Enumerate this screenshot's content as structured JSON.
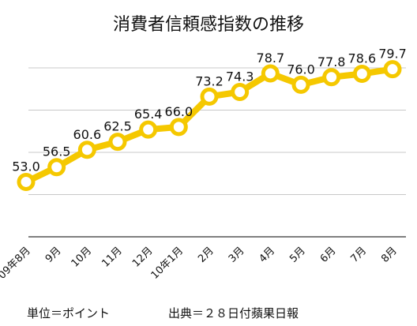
{
  "chart_data": {
    "type": "line",
    "title": "消費者信頼感指数の推移",
    "categories": [
      "09年8月",
      "9月",
      "10月",
      "11月",
      "12月",
      "10年1月",
      "2月",
      "3月",
      "4月",
      "5月",
      "6月",
      "7月",
      "8月"
    ],
    "values": [
      53.0,
      56.5,
      60.6,
      62.5,
      65.4,
      66.0,
      73.2,
      74.3,
      78.7,
      76.0,
      77.8,
      78.6,
      79.7
    ],
    "value_labels": [
      "53.0",
      "56.5",
      "60.6",
      "62.5",
      "65.4",
      "66.0",
      "73.2",
      "74.3",
      "78.7",
      "76.0",
      "77.8",
      "78.6",
      "79.7"
    ],
    "ylim": [
      40,
      80
    ],
    "grid": true,
    "colors": {
      "line": "#f5c800",
      "marker_fill": "#ffffff",
      "grid": "#c8c8c8"
    }
  },
  "notes": {
    "unit": "単位＝ポイント",
    "source": "出典＝２８日付蘋果日報"
  }
}
